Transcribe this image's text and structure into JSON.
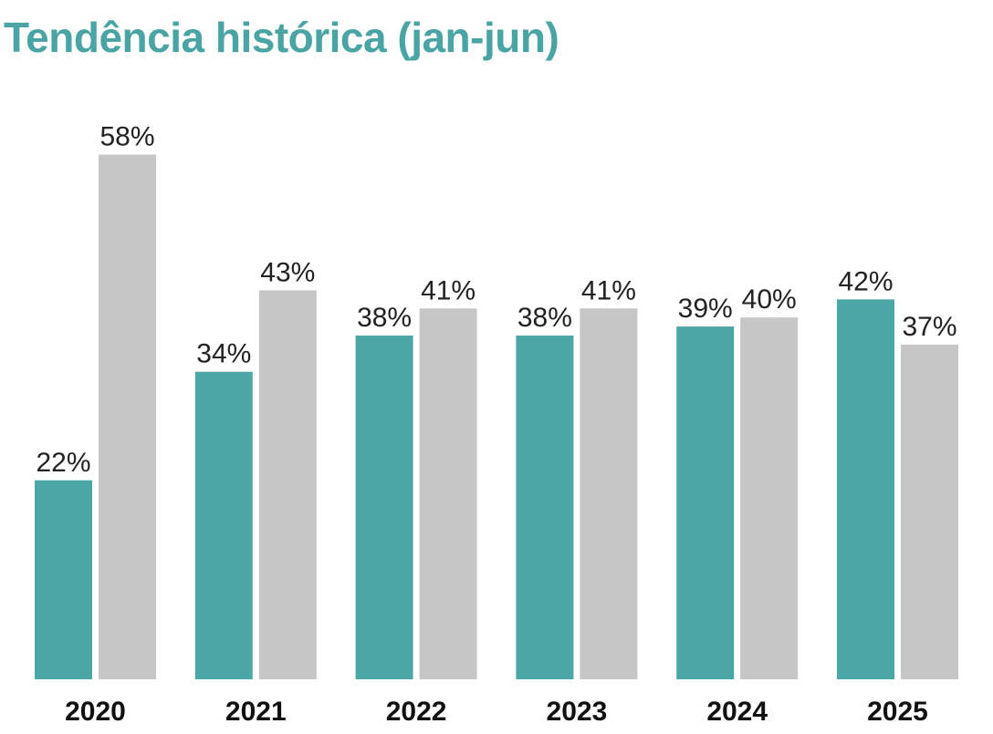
{
  "chart_data": {
    "type": "bar",
    "title": "Tendência histórica (jan-jun)",
    "categories": [
      "2020",
      "2021",
      "2022",
      "2023",
      "2024",
      "2025"
    ],
    "series": [
      {
        "values": [
          22,
          34,
          38,
          38,
          39,
          42
        ],
        "color": "#4ca6a6"
      },
      {
        "values": [
          58,
          43,
          41,
          41,
          40,
          37
        ],
        "color": "#c6c6c6"
      }
    ],
    "value_suffix": "%",
    "ylim": [
      0,
      60
    ],
    "grid": false,
    "legend": "none"
  }
}
